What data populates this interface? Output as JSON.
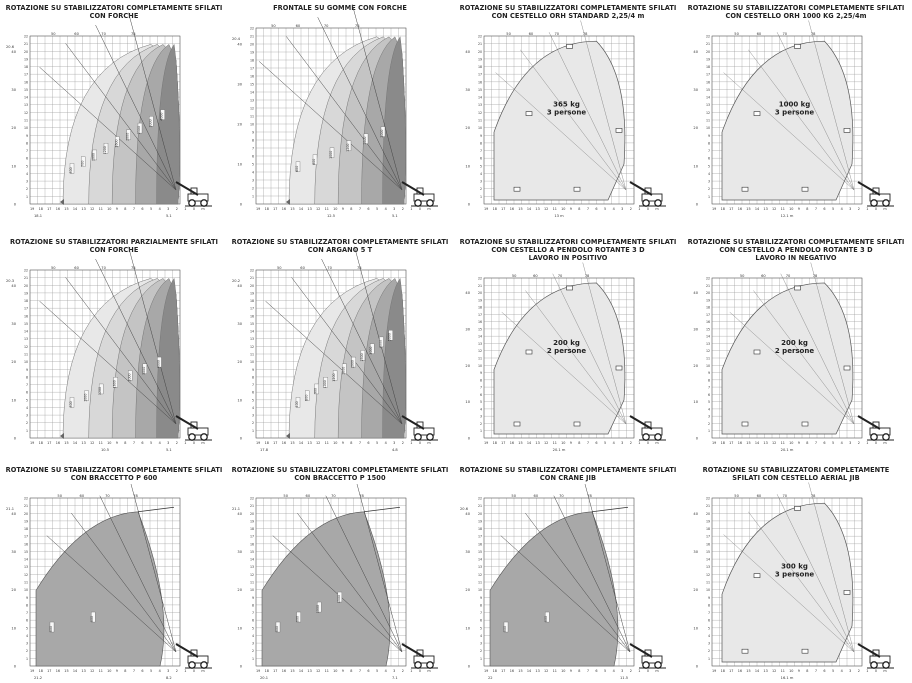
{
  "panels": [
    {
      "title_lines": [
        "ROTAZIONE SU STABILIZZATORI COMPLETAMENTE SFILATI",
        "CON FORCHE"
      ],
      "kind": "forks",
      "marks": {
        "top_left": "20.6",
        "bottom_left": "18.1",
        "bottom_right": "5.1",
        "bottom_mid": ""
      },
      "angles": [
        "50",
        "60",
        "70",
        "78"
      ],
      "loads": [
        "800",
        "700",
        "1000",
        "1200",
        "1600",
        "2000",
        "2500",
        "3000",
        "4000"
      ]
    },
    {
      "title_lines": [
        "FRONTALE SU GOMME CON FORCHE"
      ],
      "kind": "forks",
      "marks": {
        "top_left": "20.4",
        "bottom_left": "",
        "bottom_right": "5.1",
        "bottom_mid": "12.5"
      },
      "angles": [
        "50",
        "60",
        "70",
        "78"
      ],
      "loads": [
        "600",
        "800",
        "1000",
        "1200",
        "1600",
        "2000"
      ]
    },
    {
      "title_lines": [
        "ROTAZIONE SU STABILIZZATORI COMPLETAMENTE SFILATI",
        "CON CESTELLO ORH STANDARD 2,25/4 m"
      ],
      "kind": "basket",
      "load_text": [
        "365 kg",
        "3 persone"
      ],
      "marks": {
        "top_left": "",
        "bottom_left": "",
        "bottom_right": "",
        "bottom_mid": "13 m"
      },
      "angles": [
        "50",
        "60",
        "70",
        "78"
      ],
      "loads": []
    },
    {
      "title_lines": [
        "ROTAZIONE SU STABILIZZATORI COMPLETAMENTE SFILATI",
        "CON CESTELLO ORH 1000 KG 2,25/4m"
      ],
      "kind": "basket",
      "load_text": [
        "1000 kg",
        "3 persone"
      ],
      "marks": {
        "top_left": "",
        "bottom_left": "",
        "bottom_right": "",
        "bottom_mid": "12.1 m"
      },
      "angles": [
        "50",
        "60",
        "70",
        "78"
      ],
      "loads": []
    },
    {
      "title_lines": [
        "ROTAZIONE SU STABILIZZATORI PARZIALMENTE SFILATI",
        "CON FORCHE"
      ],
      "kind": "forks",
      "marks": {
        "top_left": "20.3",
        "bottom_left": "",
        "bottom_right": "5.1",
        "bottom_mid": "10.5"
      },
      "angles": [
        "50",
        "60",
        "70",
        "78"
      ],
      "loads": [
        "800",
        "1000",
        "1200",
        "1600",
        "2000",
        "3000",
        "4000"
      ]
    },
    {
      "title_lines": [
        "ROTAZIONE SU STABILIZZATORI COMPLETAMENTE SFILATI",
        "CON ARGANO 5 T"
      ],
      "kind": "forks",
      "marks": {
        "top_left": "20.2",
        "bottom_left": "17.8",
        "bottom_right": "4.8",
        "bottom_mid": ""
      },
      "angles": [
        "50",
        "60",
        "70",
        "78"
      ],
      "loads": [
        "400",
        "800",
        "900",
        "1000",
        "1200",
        "1600",
        "2000",
        "2500",
        "3000",
        "4000",
        "5000"
      ]
    },
    {
      "title_lines": [
        "ROTAZIONE SU STABILIZZATORI COMPLETAMENTE SFILATI",
        "CON CESTELLO A PENDOLO ROTANTE 3 D",
        "LAVORO IN POSITIVO"
      ],
      "kind": "basket",
      "load_text": [
        "200 kg",
        "2 persone"
      ],
      "marks": {
        "top_left": "",
        "bottom_left": "",
        "bottom_right": "",
        "bottom_mid": "20.1 m"
      },
      "angles": [
        "50",
        "60",
        "70",
        "78"
      ],
      "loads": []
    },
    {
      "title_lines": [
        "ROTAZIONE SU STABILIZZATORI COMPLETAMENTE SFILATI",
        "CON CESTELLO A PENDOLO ROTANTE 3 D",
        "LAVORO IN NEGATIVO"
      ],
      "kind": "basket",
      "load_text": [
        "200 kg",
        "2 persone"
      ],
      "marks": {
        "top_left": "",
        "bottom_left": "",
        "bottom_right": "",
        "bottom_mid": "20.1 m"
      },
      "angles": [
        "50",
        "60",
        "70",
        "78"
      ],
      "loads": []
    },
    {
      "title_lines": [
        "ROTAZIONE SU STABILIZZATORI COMPLETAMENTE SFILATI",
        "CON BRACCETTO P 600"
      ],
      "kind": "jib",
      "marks": {
        "top_left": "21.1",
        "bottom_left": "21.2",
        "bottom_right": "8.2",
        "bottom_mid": ""
      },
      "angles": [
        "50",
        "60",
        "70",
        "78"
      ],
      "loads": [
        "600",
        "600"
      ]
    },
    {
      "title_lines": [
        "ROTAZIONE SU STABILIZZATORI COMPLETAMENTE SFILATI",
        "CON BRACCETTO P 1500"
      ],
      "kind": "jib",
      "marks": {
        "top_left": "21.1",
        "bottom_left": "20.1",
        "bottom_right": "7.1",
        "bottom_mid": ""
      },
      "angles": [
        "50",
        "60",
        "70",
        "78"
      ],
      "loads": [
        "600",
        "800",
        "1000",
        "1500"
      ]
    },
    {
      "title_lines": [
        "ROTAZIONE SU STABILIZZATORI COMPLETAMENTE SFILATI",
        "CON CRANE JIB"
      ],
      "kind": "jib",
      "marks": {
        "top_left": "20.6",
        "bottom_left": "22",
        "bottom_right": "11.5",
        "bottom_mid": ""
      },
      "angles": [
        "50",
        "60",
        "70",
        "78"
      ],
      "loads": [
        "800",
        "600"
      ]
    },
    {
      "title_lines": [
        "ROTAZIONE SU STABILIZZATORI COMPLETAMENTE",
        "SFILATI CON CESTELLO AERIAL JIB"
      ],
      "kind": "basket",
      "load_text": [
        "300 kg",
        "3 persone"
      ],
      "marks": {
        "top_left": "",
        "bottom_left": "",
        "bottom_right": "",
        "bottom_mid": "16.1 m"
      },
      "angles": [
        "50",
        "60",
        "70",
        "78"
      ],
      "loads": []
    }
  ],
  "axis": {
    "y_ticks_m": [
      "0",
      "10",
      "20",
      "30",
      "40"
    ],
    "y_ticks_ft": [
      "1",
      "2",
      "3",
      "4",
      "5",
      "6",
      "7",
      "8",
      "9",
      "10",
      "11",
      "12",
      "13",
      "14",
      "15",
      "16",
      "17",
      "18",
      "19",
      "20",
      "21",
      "22",
      "23"
    ],
    "x_ticks": [
      "19",
      "18",
      "17",
      "16",
      "15",
      "14",
      "13",
      "12",
      "11",
      "10",
      "9",
      "8",
      "7",
      "6",
      "5",
      "4",
      "3",
      "2",
      "1",
      "0",
      "m"
    ]
  },
  "colors": {
    "grid": "#9a9a9a",
    "light": "#e8e8e8",
    "mid": "#c4c4c4",
    "dark": "#8a8a8a",
    "line": "#444444",
    "machine": "#222222"
  }
}
